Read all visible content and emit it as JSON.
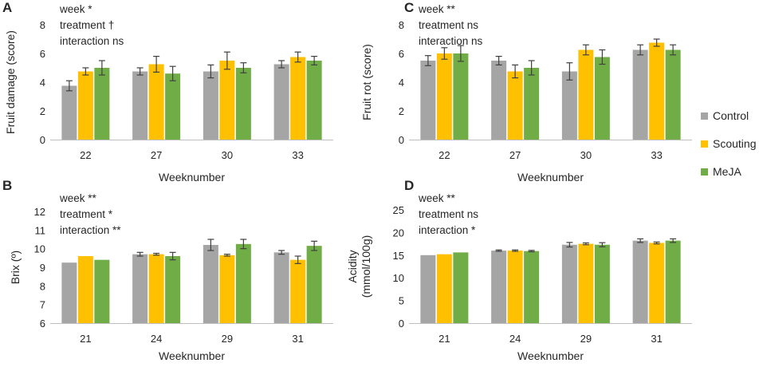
{
  "colors": {
    "control": "#a5a5a5",
    "scouting": "#ffc000",
    "meja": "#70ad47",
    "axis": "#bfbfbf",
    "errbar": "#404040"
  },
  "legend": [
    {
      "key": "control",
      "label": "Control",
      "color": "#a5a5a5"
    },
    {
      "key": "scouting",
      "label": "Scouting",
      "color": "#ffc000"
    },
    {
      "key": "meja",
      "label": "MeJA",
      "color": "#70ad47"
    }
  ],
  "chart_data": [
    {
      "panel": "A",
      "type": "bar",
      "ylabel": [
        "Fruit damage (score)"
      ],
      "xlabel": "Weeknumber",
      "ylim": [
        0,
        8
      ],
      "yticks": [
        0,
        2,
        4,
        6,
        8
      ],
      "categories": [
        "22",
        "27",
        "30",
        "33"
      ],
      "annotations": [
        "week *",
        "treatment  †",
        "interaction ns"
      ],
      "series": [
        {
          "name": "Control",
          "values": [
            3.75,
            4.75,
            4.75,
            5.25
          ],
          "errors": [
            0.35,
            0.25,
            0.45,
            0.25
          ]
        },
        {
          "name": "Scouting",
          "values": [
            4.75,
            5.25,
            5.5,
            5.75
          ],
          "errors": [
            0.25,
            0.55,
            0.6,
            0.35
          ]
        },
        {
          "name": "MeJA",
          "values": [
            5.0,
            4.6,
            5.0,
            5.5
          ],
          "errors": [
            0.5,
            0.5,
            0.35,
            0.3
          ]
        }
      ]
    },
    {
      "panel": "C",
      "type": "bar",
      "ylabel": [
        "Fruit rot (score)"
      ],
      "xlabel": "Weeknumber",
      "ylim": [
        0,
        8
      ],
      "yticks": [
        0,
        2,
        4,
        6,
        8
      ],
      "categories": [
        "22",
        "27",
        "30",
        "33"
      ],
      "annotations": [
        "week **",
        "treatment ns",
        "interaction ns"
      ],
      "series": [
        {
          "name": "Control",
          "values": [
            5.5,
            5.5,
            4.75,
            6.25
          ],
          "errors": [
            0.35,
            0.3,
            0.6,
            0.35
          ]
        },
        {
          "name": "Scouting",
          "values": [
            6.0,
            4.75,
            6.25,
            6.75
          ],
          "errors": [
            0.4,
            0.45,
            0.35,
            0.25
          ]
        },
        {
          "name": "MeJA",
          "values": [
            6.0,
            5.0,
            5.75,
            6.25
          ],
          "errors": [
            0.55,
            0.5,
            0.5,
            0.35
          ]
        }
      ]
    },
    {
      "panel": "B",
      "type": "bar",
      "ylabel": [
        "Brix (º)"
      ],
      "xlabel": "Weeknumber",
      "ylim": [
        6,
        12
      ],
      "yticks": [
        6,
        7,
        8,
        9,
        10,
        11,
        12
      ],
      "categories": [
        "21",
        "24",
        "29",
        "31"
      ],
      "annotations": [
        "week **",
        "treatment *",
        "interaction **"
      ],
      "series": [
        {
          "name": "Control",
          "values": [
            9.25,
            9.7,
            10.2,
            9.8
          ],
          "errors": [
            0,
            0.1,
            0.3,
            0.1
          ]
        },
        {
          "name": "Scouting",
          "values": [
            9.6,
            9.7,
            9.65,
            9.4
          ],
          "errors": [
            0,
            0.05,
            0.05,
            0.2
          ]
        },
        {
          "name": "MeJA",
          "values": [
            9.4,
            9.6,
            10.25,
            10.15
          ],
          "errors": [
            0,
            0.2,
            0.25,
            0.25
          ]
        }
      ]
    },
    {
      "panel": "D",
      "type": "bar",
      "ylabel": [
        "Acidity",
        "(mmol/100g)"
      ],
      "xlabel": "Weeknumber",
      "ylim": [
        0,
        25
      ],
      "yticks": [
        0,
        5,
        10,
        15,
        20,
        25
      ],
      "categories": [
        "21",
        "24",
        "29",
        "31"
      ],
      "annotations": [
        "week **",
        "treatment ns",
        "interaction *"
      ],
      "series": [
        {
          "name": "Control",
          "values": [
            15.0,
            16.0,
            17.3,
            18.2
          ],
          "errors": [
            0,
            0.15,
            0.5,
            0.4
          ]
        },
        {
          "name": "Scouting",
          "values": [
            15.2,
            16.0,
            17.5,
            17.7
          ],
          "errors": [
            0,
            0.15,
            0.2,
            0.2
          ]
        },
        {
          "name": "MeJA",
          "values": [
            15.6,
            15.9,
            17.3,
            18.2
          ],
          "errors": [
            0,
            0.15,
            0.45,
            0.4
          ]
        }
      ]
    }
  ]
}
